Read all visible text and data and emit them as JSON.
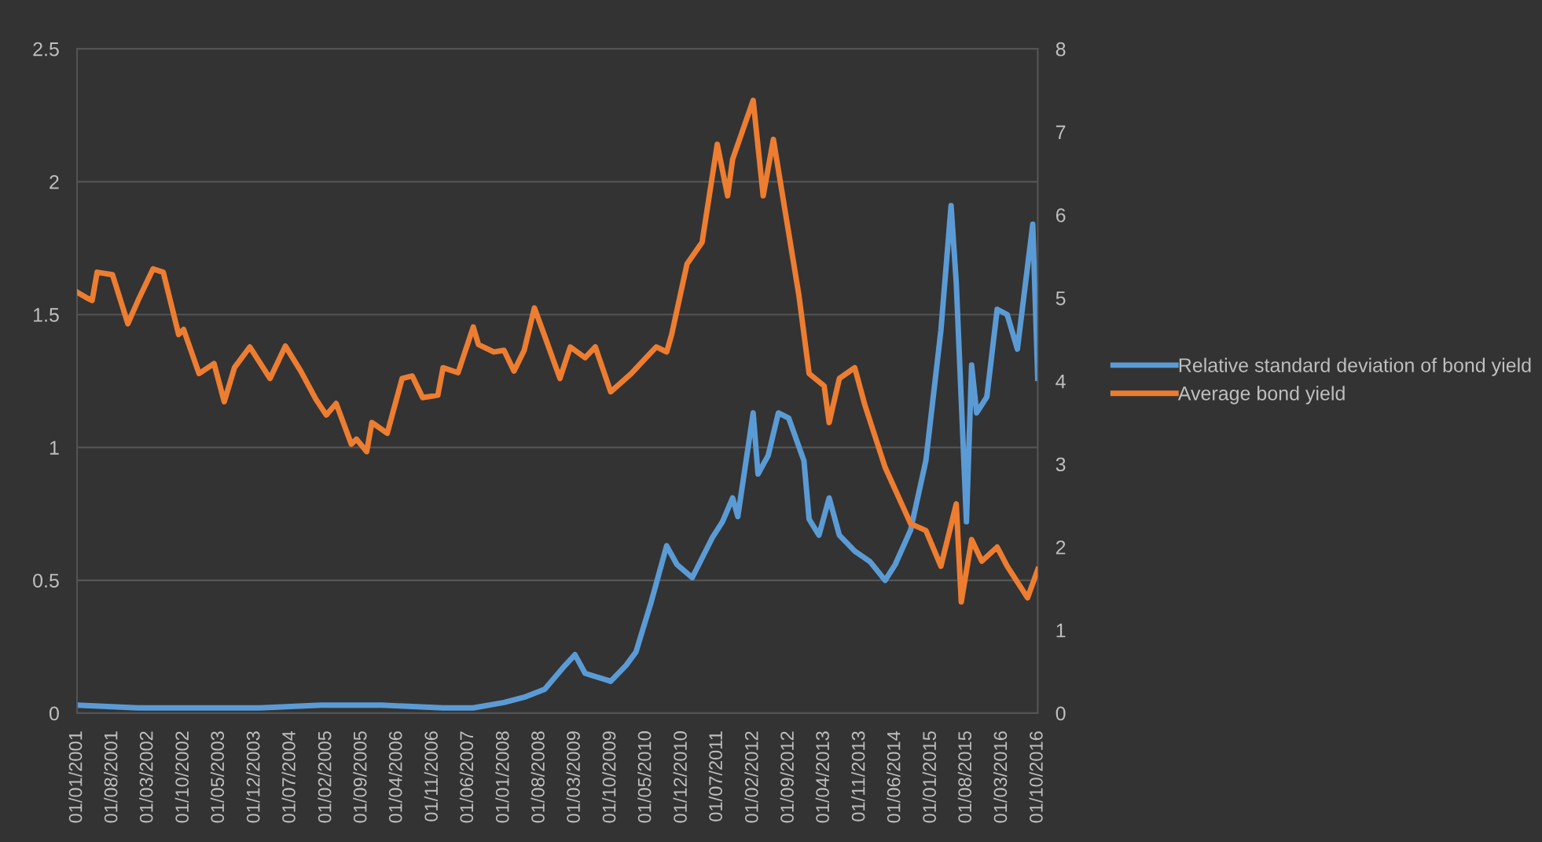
{
  "chart_data": {
    "type": "line",
    "series": [
      {
        "name": "Relative standard deviation of bond yield",
        "color": "#5b9bd5",
        "axis": "y",
        "x": [
          "2001-01",
          "2002-01",
          "2003-01",
          "2004-01",
          "2005-01",
          "2006-01",
          "2007-01",
          "2007-07",
          "2008-01",
          "2008-05",
          "2008-09",
          "2009-01",
          "2009-03",
          "2009-05",
          "2009-10",
          "2010-01",
          "2010-03",
          "2010-06",
          "2010-09",
          "2010-11",
          "2011-02",
          "2011-06",
          "2011-08",
          "2011-10",
          "2011-11",
          "2012-02",
          "2012-03",
          "2012-05",
          "2012-07",
          "2012-09",
          "2012-12",
          "2013-01",
          "2013-03",
          "2013-05",
          "2013-07",
          "2013-10",
          "2014-01",
          "2014-04",
          "2014-06",
          "2014-09",
          "2014-12",
          "2015-03",
          "2015-05",
          "2015-06",
          "2015-08",
          "2015-09",
          "2015-10",
          "2015-12",
          "2016-02",
          "2016-04",
          "2016-06",
          "2016-09",
          "2016-10"
        ],
        "values": [
          0.03,
          0.02,
          0.02,
          0.02,
          0.03,
          0.03,
          0.02,
          0.02,
          0.04,
          0.06,
          0.09,
          0.18,
          0.22,
          0.15,
          0.12,
          0.18,
          0.23,
          0.42,
          0.63,
          0.56,
          0.51,
          0.66,
          0.72,
          0.81,
          0.74,
          1.13,
          0.9,
          0.97,
          1.13,
          1.11,
          0.95,
          0.73,
          0.67,
          0.81,
          0.67,
          0.61,
          0.57,
          0.5,
          0.56,
          0.69,
          0.95,
          1.44,
          1.91,
          1.62,
          0.72,
          1.31,
          1.13,
          1.19,
          1.52,
          1.5,
          1.37,
          1.84,
          1.26
        ]
      },
      {
        "name": "Average bond yield",
        "color": "#ed7d31",
        "axis": "y2",
        "x": [
          "2001-01",
          "2001-03",
          "2001-04",
          "2001-05",
          "2001-08",
          "2001-11",
          "2002-01",
          "2002-04",
          "2002-06",
          "2002-09",
          "2002-10",
          "2003-01",
          "2003-04",
          "2003-06",
          "2003-08",
          "2003-11",
          "2004-03",
          "2004-06",
          "2004-09",
          "2004-12",
          "2005-02",
          "2005-04",
          "2005-07",
          "2005-08",
          "2005-10",
          "2005-11",
          "2006-02",
          "2006-05",
          "2006-07",
          "2006-09",
          "2006-12",
          "2007-01",
          "2007-04",
          "2007-07",
          "2007-08",
          "2007-11",
          "2008-01",
          "2008-03",
          "2008-05",
          "2008-07",
          "2008-09",
          "2008-12",
          "2009-02",
          "2009-05",
          "2009-07",
          "2009-10",
          "2010-02",
          "2010-05",
          "2010-07",
          "2010-09",
          "2010-10",
          "2011-01",
          "2011-04",
          "2011-07",
          "2011-09",
          "2011-10",
          "2012-02",
          "2012-04",
          "2012-06",
          "2012-11",
          "2013-01",
          "2013-04",
          "2013-05",
          "2013-07",
          "2013-10",
          "2013-12",
          "2014-04",
          "2014-09",
          "2014-12",
          "2015-03",
          "2015-06",
          "2015-07",
          "2015-09",
          "2015-11",
          "2016-02",
          "2016-04",
          "2016-08",
          "2016-10"
        ],
        "values": [
          5.07,
          5.0,
          4.97,
          5.31,
          5.28,
          4.69,
          4.97,
          5.35,
          5.31,
          4.56,
          4.62,
          4.09,
          4.21,
          3.75,
          4.16,
          4.41,
          4.03,
          4.42,
          4.12,
          3.78,
          3.59,
          3.73,
          3.24,
          3.3,
          3.15,
          3.5,
          3.37,
          4.03,
          4.06,
          3.8,
          3.83,
          4.16,
          4.1,
          4.65,
          4.44,
          4.35,
          4.37,
          4.12,
          4.37,
          4.88,
          4.54,
          4.03,
          4.41,
          4.28,
          4.41,
          3.87,
          4.09,
          4.28,
          4.41,
          4.35,
          4.56,
          5.41,
          5.67,
          6.85,
          6.23,
          6.67,
          7.38,
          6.23,
          6.91,
          5.03,
          4.09,
          3.94,
          3.5,
          4.03,
          4.16,
          3.71,
          2.96,
          2.28,
          2.2,
          1.77,
          2.52,
          1.34,
          2.09,
          1.83,
          2.0,
          1.77,
          1.39,
          1.73
        ]
      }
    ],
    "xlim": [
      "2001-01-01",
      "2016-10-01"
    ],
    "xticks": [
      {
        "value": "2001-01-01",
        "label": "01/01/2001"
      },
      {
        "value": "2001-08-01",
        "label": "01/08/2001"
      },
      {
        "value": "2002-03-01",
        "label": "01/03/2002"
      },
      {
        "value": "2002-10-01",
        "label": "01/10/2002"
      },
      {
        "value": "2003-05-01",
        "label": "01/05/2003"
      },
      {
        "value": "2003-12-01",
        "label": "01/12/2003"
      },
      {
        "value": "2004-07-01",
        "label": "01/07/2004"
      },
      {
        "value": "2005-02-01",
        "label": "01/02/2005"
      },
      {
        "value": "2005-09-01",
        "label": "01/09/2005"
      },
      {
        "value": "2006-04-01",
        "label": "01/04/2006"
      },
      {
        "value": "2006-11-01",
        "label": "01/11/2006"
      },
      {
        "value": "2007-06-01",
        "label": "01/06/2007"
      },
      {
        "value": "2008-01-01",
        "label": "01/01/2008"
      },
      {
        "value": "2008-08-01",
        "label": "01/08/2008"
      },
      {
        "value": "2009-03-01",
        "label": "01/03/2009"
      },
      {
        "value": "2009-10-01",
        "label": "01/10/2009"
      },
      {
        "value": "2010-05-01",
        "label": "01/05/2010"
      },
      {
        "value": "2010-12-01",
        "label": "01/12/2010"
      },
      {
        "value": "2011-07-01",
        "label": "01/07/2011"
      },
      {
        "value": "2012-02-01",
        "label": "01/02/2012"
      },
      {
        "value": "2012-09-01",
        "label": "01/09/2012"
      },
      {
        "value": "2013-04-01",
        "label": "01/04/2013"
      },
      {
        "value": "2013-11-01",
        "label": "01/11/2013"
      },
      {
        "value": "2014-06-01",
        "label": "01/06/2014"
      },
      {
        "value": "2015-01-01",
        "label": "01/01/2015"
      },
      {
        "value": "2015-08-01",
        "label": "01/08/2015"
      },
      {
        "value": "2016-03-01",
        "label": "01/03/2016"
      },
      {
        "value": "2016-10-01",
        "label": "01/10/2016"
      }
    ],
    "ylim": [
      0,
      2.5
    ],
    "yticks": [
      0,
      0.5,
      1,
      1.5,
      2,
      2.5
    ],
    "y2lim": [
      0,
      8
    ],
    "y2ticks": [
      0,
      1,
      2,
      3,
      4,
      5,
      6,
      7,
      8
    ],
    "grid": "y",
    "legend": "right",
    "line_style": "solid",
    "marker": "none"
  }
}
